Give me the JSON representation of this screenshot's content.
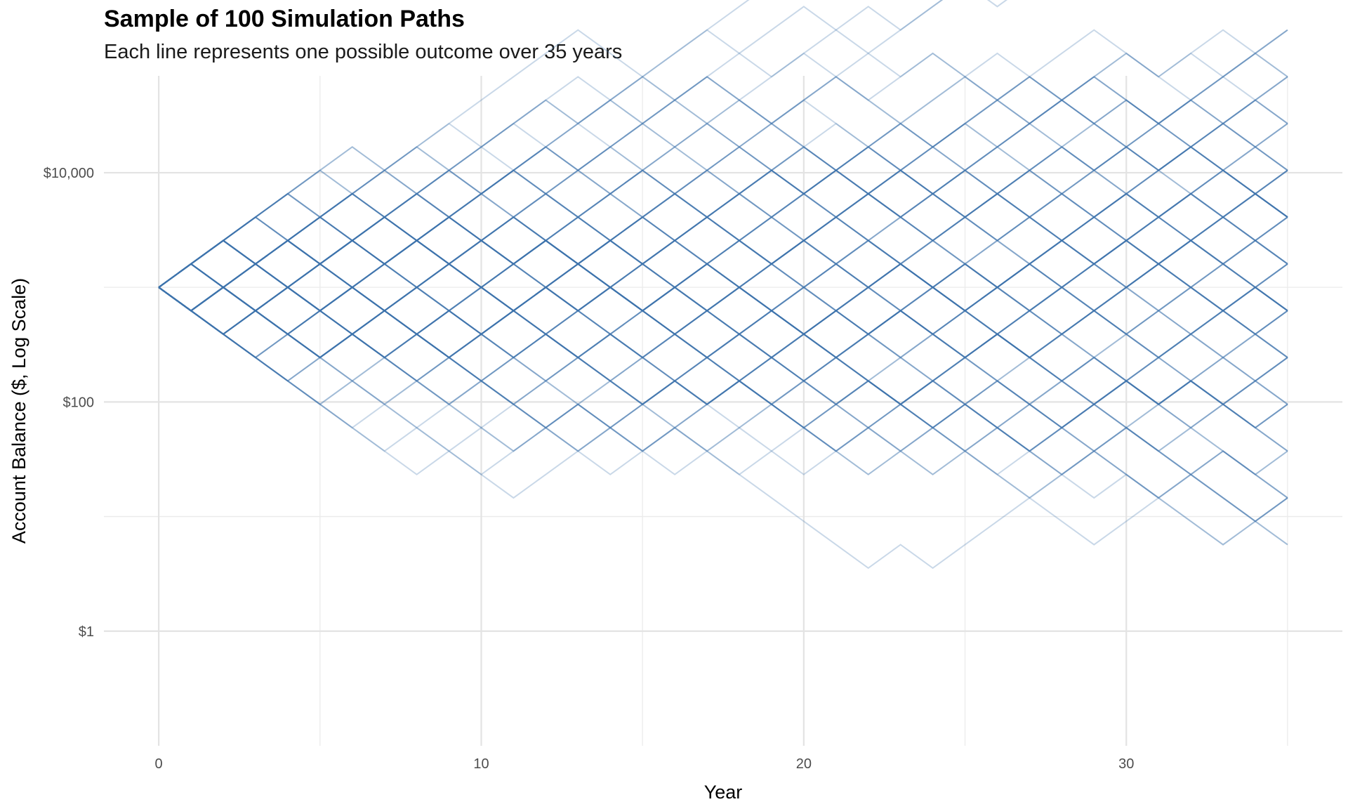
{
  "chart_data": {
    "type": "line",
    "title": "Sample of 100 Simulation Paths",
    "subtitle": "Each line represents one possible outcome over 35 years",
    "xlabel": "Year",
    "ylabel": "Account Balance ($, Log Scale)",
    "xlim": [
      -1.7,
      36.7
    ],
    "ylim": [
      0.1,
      70000
    ],
    "y_scale": "log",
    "x_ticks": [
      0,
      10,
      20,
      30
    ],
    "x_tick_labels": [
      "0",
      "10",
      "20",
      "30"
    ],
    "y_ticks": [
      1,
      100,
      10000
    ],
    "y_tick_labels": [
      "$1",
      "$100",
      "$10,000"
    ],
    "grid": true,
    "legend": "none",
    "line_color": "#3d72ad",
    "start_balance": 1000,
    "up_factor": 1.6,
    "down_factor": 0.625,
    "path_count": 100,
    "year_count": 35
  }
}
